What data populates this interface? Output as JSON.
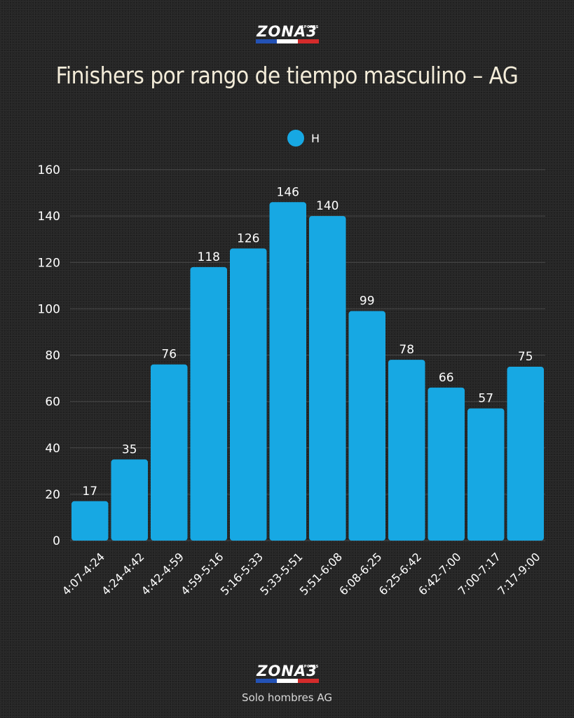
{
  "brand": {
    "logo_text": "ZONA3",
    "logo_sup": "SPORTS",
    "colors": {
      "blue": "#2352b6",
      "white": "#ffffff",
      "red": "#d42b2b"
    }
  },
  "footer": {
    "text": "Solo hombres AG"
  },
  "chart_data": {
    "type": "bar",
    "title": "Finishers por rango de tiempo masculino – AG",
    "xlabel": "",
    "ylabel": "",
    "categories": [
      "4:07-4:24",
      "4:24-4:42",
      "4:42-4:59",
      "4:59-5:16",
      "5:16-5:33",
      "5:33-5:51",
      "5:51-6:08",
      "6:08-6:25",
      "6:25-6:42",
      "6:42-7:00",
      "7:00-7:17",
      "7:17-9:00"
    ],
    "series": [
      {
        "name": "H",
        "color": "#17a8e3",
        "values": [
          17,
          35,
          76,
          118,
          126,
          146,
          140,
          99,
          78,
          66,
          57,
          75
        ]
      }
    ],
    "ylim": [
      0,
      160
    ],
    "yticks": [
      0,
      20,
      40,
      60,
      80,
      100,
      120,
      140,
      160
    ],
    "grid": true,
    "legend_position": "top-center",
    "data_labels": true
  }
}
